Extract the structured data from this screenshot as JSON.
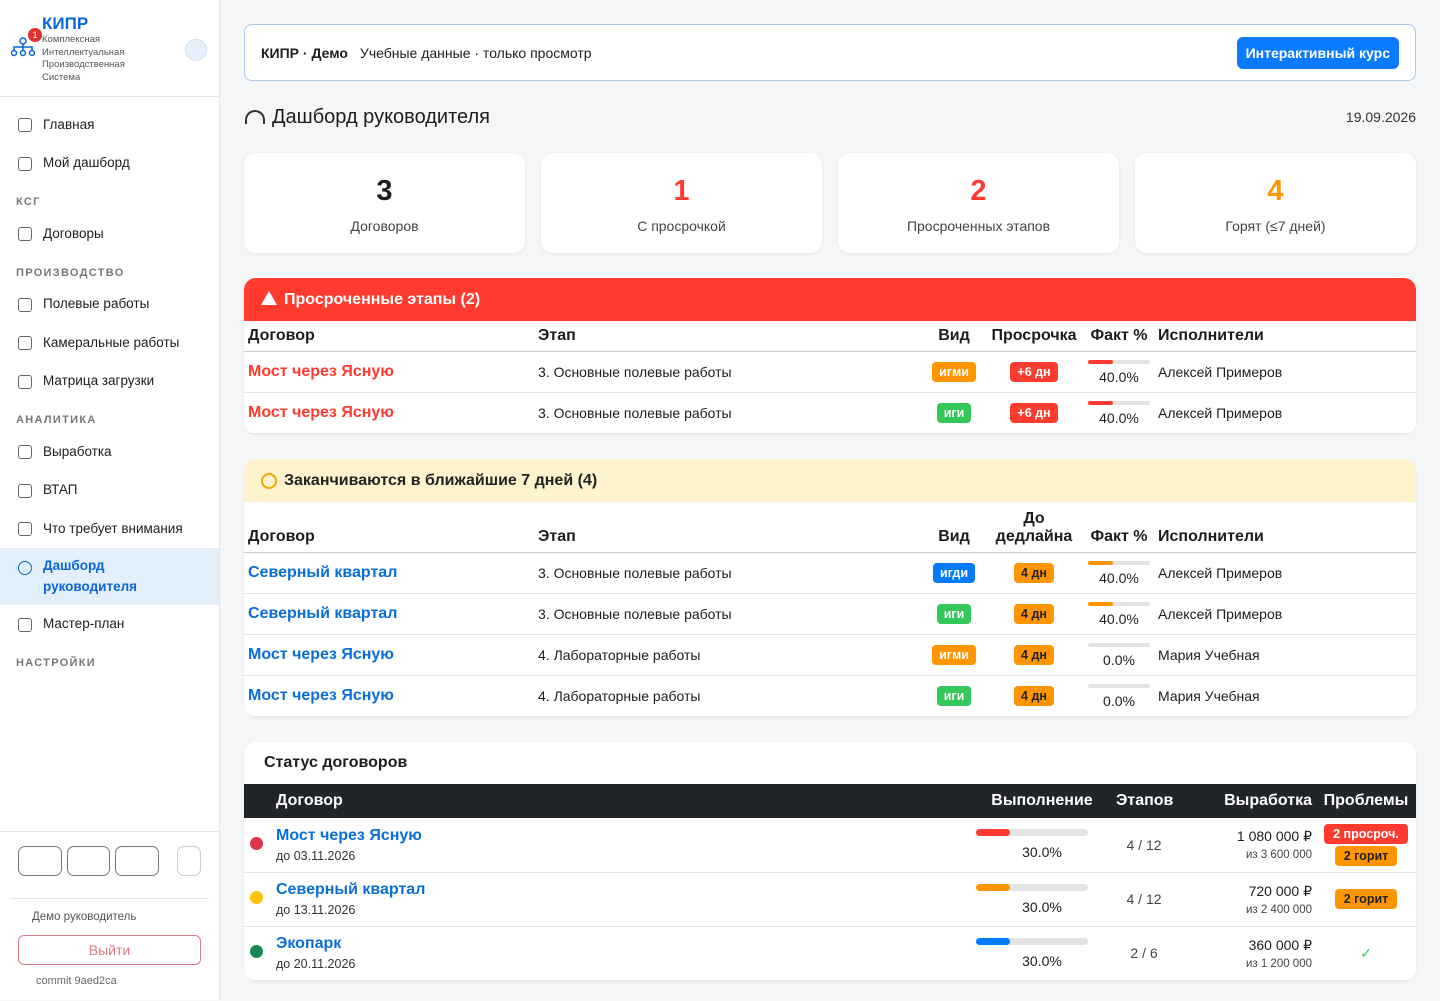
{
  "sidebar": {
    "brand": {
      "title": "КИПР",
      "badge": "1",
      "subtitle": "Комплексная Интеллектуальная Производственная Система"
    },
    "top": [
      "Главная",
      "Мой дашборд"
    ],
    "groups": [
      {
        "title": "КСГ",
        "items": [
          "Договоры"
        ]
      },
      {
        "title": "ПРОИЗВОДСТВО",
        "items": [
          "Полевые работы",
          "Камеральные работы",
          "Матрица загрузки"
        ]
      },
      {
        "title": "АНАЛИТИКА",
        "items": [
          "Выработка",
          "ВТАП",
          "Что требует внимания",
          "Дашборд руководителя",
          "Мастер-план"
        ]
      },
      {
        "title": "НАСТРОЙКИ",
        "items": []
      }
    ],
    "user": "Демо руководитель",
    "logout": "Выйти",
    "commit": "commit 9aed2ca"
  },
  "banner": {
    "title": "КИПР · Демо",
    "text": "Учебные данные · только просмотр",
    "button": "Интерактивный курс"
  },
  "header": {
    "title": "Дашборд руководителя",
    "date": "19.09.2026"
  },
  "kpis": [
    {
      "value": 3,
      "label": "Договоров",
      "color": "#1d1d1f"
    },
    {
      "value": 1,
      "label": "С просрочкой",
      "color": "#ff3b30"
    },
    {
      "value": 2,
      "label": "Просроченных этапов",
      "color": "#ff3b30"
    },
    {
      "value": 4,
      "label": "Горят (≤7 дней)",
      "color": "#ff9500"
    }
  ],
  "overdue": {
    "title": "Просроченные этапы (2)",
    "columns": [
      "Договор",
      "Этап",
      "Вид",
      "Просрочка",
      "Факт %",
      "Исполнители"
    ],
    "rows": [
      {
        "contract": "Мост через Ясную",
        "stage": "3. Основные полевые работы",
        "kind": {
          "label": "игми",
          "color": "#ff9500"
        },
        "term": "+6 дн",
        "fact": "40.0%",
        "people": "Алексей Примеров"
      },
      {
        "contract": "Мост через Ясную",
        "stage": "3. Основные полевые работы",
        "kind": {
          "label": "иги",
          "color": "#34c759"
        },
        "term": "+6 дн",
        "fact": "40.0%",
        "people": "Алексей Примеров"
      }
    ]
  },
  "upcoming": {
    "title": "Заканчиваются в ближайшие 7 дней (4)",
    "columns": [
      "Договор",
      "Этап",
      "Вид",
      "До дедлайна",
      "Факт %",
      "Исполнители"
    ],
    "rows": [
      {
        "contract": "Северный квартал",
        "stage": "3. Основные полевые работы",
        "kind": {
          "label": "игди",
          "color": "#007aff"
        },
        "term": "4 дн",
        "fact": "40.0%",
        "people": "Алексей Примеров"
      },
      {
        "contract": "Северный квартал",
        "stage": "3. Основные полевые работы",
        "kind": {
          "label": "иги",
          "color": "#34c759"
        },
        "term": "4 дн",
        "fact": "40.0%",
        "people": "Алексей Примеров"
      },
      {
        "contract": "Мост через Ясную",
        "stage": "4. Лабораторные работы",
        "kind": {
          "label": "игми",
          "color": "#ff9500"
        },
        "term": "4 дн",
        "fact": "0.0%",
        "people": "Мария Учебная"
      },
      {
        "contract": "Мост через Ясную",
        "stage": "4. Лабораторные работы",
        "kind": {
          "label": "иги",
          "color": "#34c759"
        },
        "term": "4 дн",
        "fact": "0.0%",
        "people": "Мария Учебная"
      }
    ]
  },
  "status": {
    "title": "Статус договоров",
    "columns": [
      "Договор",
      "Выполнение",
      "Этапов",
      "Выработка",
      "Проблемы"
    ],
    "rows": [
      {
        "name": "Мост через Ясную",
        "due": "до 03.11.2026",
        "color": "#dc3545",
        "progress": "30.0%",
        "stages": "4 / 12",
        "amount": "1 080 000 ₽",
        "of": "из 3 600 000",
        "problems": [
          "2 просроч.",
          "2 горит"
        ]
      },
      {
        "name": "Северный квартал",
        "due": "до 13.11.2026",
        "color": "#ffc107",
        "progress": "30.0%",
        "stages": "4 / 12",
        "amount": "720 000 ₽",
        "of": "из 2 400 000",
        "problems": [
          "2 горит"
        ]
      },
      {
        "name": "Экопарк",
        "due": "до 20.11.2026",
        "color": "#198754",
        "progress": "30.0%",
        "stages": "2 / 6",
        "amount": "360 000 ₽",
        "of": "из 1 200 000",
        "problems": [],
        "ok": "✓"
      }
    ]
  }
}
